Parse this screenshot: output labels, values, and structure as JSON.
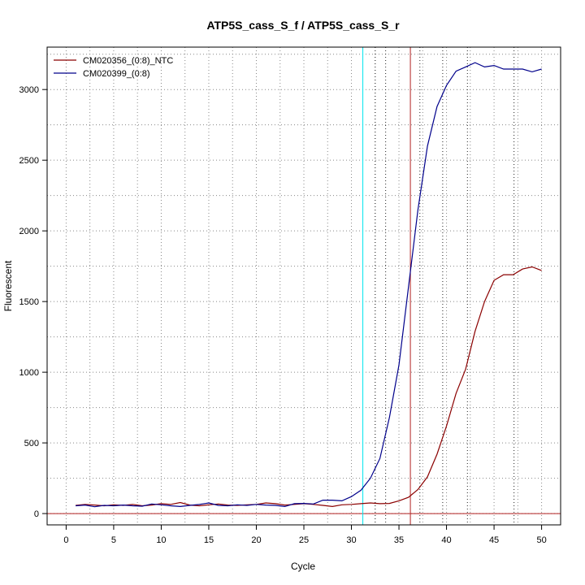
{
  "chart_data": {
    "type": "line",
    "title": "ATP5S_cass_S_f / ATP5S_cass_S_r",
    "xlabel": "Cycle",
    "ylabel": "Fluorescent",
    "xlim": [
      -2,
      52
    ],
    "ylim": [
      -80,
      3300
    ],
    "xticks": [
      0,
      5,
      10,
      15,
      20,
      25,
      30,
      35,
      40,
      45,
      50
    ],
    "yticks": [
      0,
      500,
      1000,
      1500,
      2000,
      2500,
      3000
    ],
    "grid": true,
    "legend_position": "top-left",
    "x": [
      1,
      2,
      3,
      4,
      5,
      6,
      7,
      8,
      9,
      10,
      11,
      12,
      13,
      14,
      15,
      16,
      17,
      18,
      19,
      20,
      21,
      22,
      23,
      24,
      25,
      26,
      27,
      28,
      29,
      30,
      31,
      32,
      33,
      34,
      35,
      36,
      37,
      38,
      39,
      40,
      41,
      42,
      43,
      44,
      45,
      46,
      47,
      48,
      49,
      50
    ],
    "series": [
      {
        "name": "CM020356_(0:8)_NTC",
        "color": "#8b0000",
        "values": [
          58,
          65,
          60,
          55,
          62,
          58,
          65,
          55,
          60,
          70,
          65,
          78,
          60,
          55,
          62,
          68,
          60,
          58,
          62,
          65,
          75,
          70,
          60,
          65,
          70,
          65,
          58,
          50,
          62,
          65,
          70,
          75,
          70,
          72,
          90,
          115,
          170,
          260,
          420,
          620,
          850,
          1020,
          1290,
          1500,
          1650,
          1690,
          1690,
          1730,
          1745,
          1720
        ]
      },
      {
        "name": "CM020399_(0:8)",
        "color": "#00008b",
        "values": [
          55,
          60,
          48,
          58,
          55,
          60,
          55,
          52,
          68,
          62,
          55,
          50,
          58,
          65,
          75,
          58,
          55,
          62,
          58,
          65,
          60,
          58,
          50,
          70,
          72,
          68,
          95,
          95,
          90,
          120,
          165,
          250,
          390,
          680,
          1050,
          1600,
          2150,
          2600,
          2880,
          3030,
          3130,
          3160,
          3190,
          3160,
          3170,
          3145,
          3145,
          3145,
          3125,
          3145
        ]
      }
    ],
    "vertical_lines": [
      {
        "x": 31.2,
        "color": "#00e5ee"
      },
      {
        "x": 36.2,
        "color": "#b22222"
      }
    ],
    "vertical_dotted": [
      32.5,
      33.6,
      37.2,
      39.6,
      42.2,
      47.1
    ],
    "horizontal_line": {
      "y": 0,
      "color": "#b22222"
    }
  }
}
